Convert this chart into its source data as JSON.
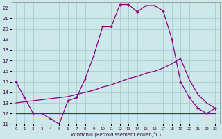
{
  "xlabel": "Windchill (Refroidissement éolien,°C)",
  "bg_color": "#cce8e8",
  "grid_color": "#aacccc",
  "line_color": "#880088",
  "xlim": [
    -0.5,
    23.5
  ],
  "ylim": [
    11,
    22.5
  ],
  "xticks": [
    0,
    1,
    2,
    3,
    4,
    5,
    6,
    7,
    8,
    9,
    10,
    11,
    12,
    13,
    14,
    15,
    16,
    17,
    18,
    19,
    20,
    21,
    22,
    23
  ],
  "yticks": [
    11,
    12,
    13,
    14,
    15,
    16,
    17,
    18,
    19,
    20,
    21,
    22
  ],
  "series1_x": [
    0,
    1,
    2,
    3,
    4,
    5,
    6,
    7,
    8,
    9,
    10,
    11,
    12,
    13,
    14,
    15,
    16,
    17,
    18,
    19,
    20,
    21,
    22,
    23
  ],
  "series1_y": [
    15,
    13.5,
    12,
    12,
    11.5,
    11,
    13.2,
    13.5,
    15.3,
    17.5,
    20.2,
    20.2,
    22.3,
    22.3,
    21.6,
    22.2,
    22.2,
    21.7,
    19,
    15,
    13.5,
    12.5,
    12,
    12.5
  ],
  "series2_x": [
    0,
    1,
    2,
    3,
    4,
    5,
    6,
    7,
    8,
    9,
    10,
    11,
    12,
    13,
    14,
    15,
    16,
    17,
    18,
    19,
    20,
    21,
    22,
    23
  ],
  "series2_y": [
    12,
    12,
    12,
    12,
    12,
    12,
    12,
    12,
    12,
    12,
    12,
    12,
    12,
    12,
    12,
    12,
    12,
    12,
    12,
    12,
    12,
    12,
    12,
    12
  ],
  "series3_x": [
    0,
    1,
    2,
    3,
    4,
    5,
    6,
    7,
    8,
    9,
    10,
    11,
    12,
    13,
    14,
    15,
    16,
    17,
    18,
    19,
    20,
    21,
    22,
    23
  ],
  "series3_y": [
    13.0,
    13.1,
    13.2,
    13.3,
    13.4,
    13.5,
    13.6,
    13.8,
    14.0,
    14.2,
    14.5,
    14.7,
    15.0,
    15.3,
    15.5,
    15.8,
    16.0,
    16.3,
    16.7,
    17.2,
    15.2,
    13.8,
    13.0,
    12.5
  ]
}
